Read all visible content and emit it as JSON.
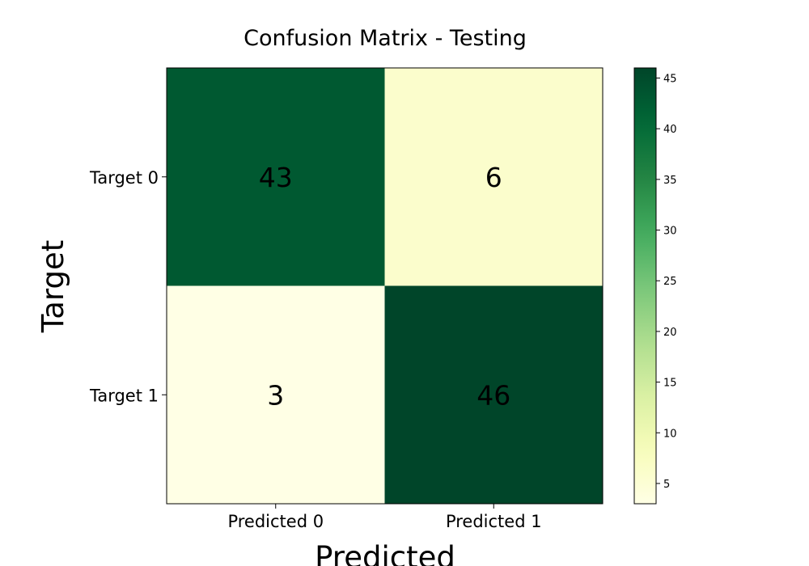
{
  "chart_data": {
    "type": "heatmap",
    "title": "Confusion Matrix - Testing",
    "xlabel": "Predicted",
    "ylabel": "Target",
    "x_categories": [
      "Predicted 0",
      "Predicted 1"
    ],
    "y_categories": [
      "Target 0",
      "Target 1"
    ],
    "values": [
      [
        43,
        6
      ],
      [
        3,
        46
      ]
    ],
    "colormap": "YlGn",
    "color_range": [
      3,
      46
    ],
    "colorbar_ticks": [
      5,
      10,
      15,
      20,
      25,
      30,
      35,
      40,
      45
    ]
  }
}
